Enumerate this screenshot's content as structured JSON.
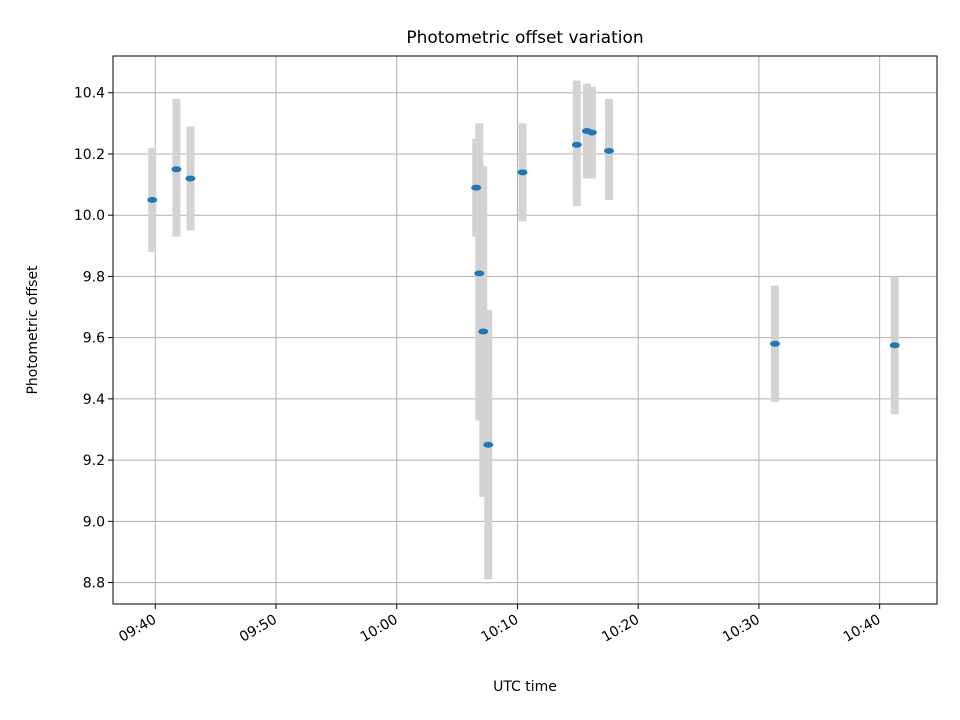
{
  "chart_data": {
    "type": "scatter",
    "title": "Photometric offset variation",
    "xlabel": "UTC time",
    "ylabel": "Photometric offset",
    "xticks": [
      "09:40",
      "09:50",
      "10:00",
      "10:10",
      "10:20",
      "10:30",
      "10:40"
    ],
    "yticks": [
      "8.8",
      "9.0",
      "9.2",
      "9.4",
      "9.6",
      "9.8",
      "10.0",
      "10.2",
      "10.4"
    ],
    "xlim": [
      "09:36:30",
      "10:44:45"
    ],
    "ylim": [
      8.73,
      10.52
    ],
    "grid": true,
    "series": [
      {
        "points": [
          {
            "t": "09:39:45",
            "y": 10.05,
            "lo": 9.88,
            "hi": 10.22
          },
          {
            "t": "09:41:45",
            "y": 10.15,
            "lo": 9.93,
            "hi": 10.38
          },
          {
            "t": "09:42:55",
            "y": 10.12,
            "lo": 9.95,
            "hi": 10.29
          },
          {
            "t": "10:06:35",
            "y": 10.09,
            "lo": 9.93,
            "hi": 10.25
          },
          {
            "t": "10:06:50",
            "y": 9.81,
            "lo": 9.33,
            "hi": 10.3
          },
          {
            "t": "10:07:10",
            "y": 9.62,
            "lo": 9.08,
            "hi": 10.16
          },
          {
            "t": "10:07:35",
            "y": 9.25,
            "lo": 8.81,
            "hi": 9.69
          },
          {
            "t": "10:10:25",
            "y": 10.14,
            "lo": 9.98,
            "hi": 10.3
          },
          {
            "t": "10:14:55",
            "y": 10.23,
            "lo": 10.03,
            "hi": 10.44
          },
          {
            "t": "10:15:45",
            "y": 10.275,
            "lo": 10.12,
            "hi": 10.43
          },
          {
            "t": "10:16:10",
            "y": 10.27,
            "lo": 10.12,
            "hi": 10.42
          },
          {
            "t": "10:17:35",
            "y": 10.21,
            "lo": 10.05,
            "hi": 10.38
          },
          {
            "t": "10:31:20",
            "y": 9.58,
            "lo": 9.39,
            "hi": 9.77
          },
          {
            "t": "10:41:15",
            "y": 9.575,
            "lo": 9.35,
            "hi": 9.8
          }
        ],
        "marker_color": "#1f77b4",
        "errorbar_color": "#d3d3d3"
      }
    ]
  }
}
